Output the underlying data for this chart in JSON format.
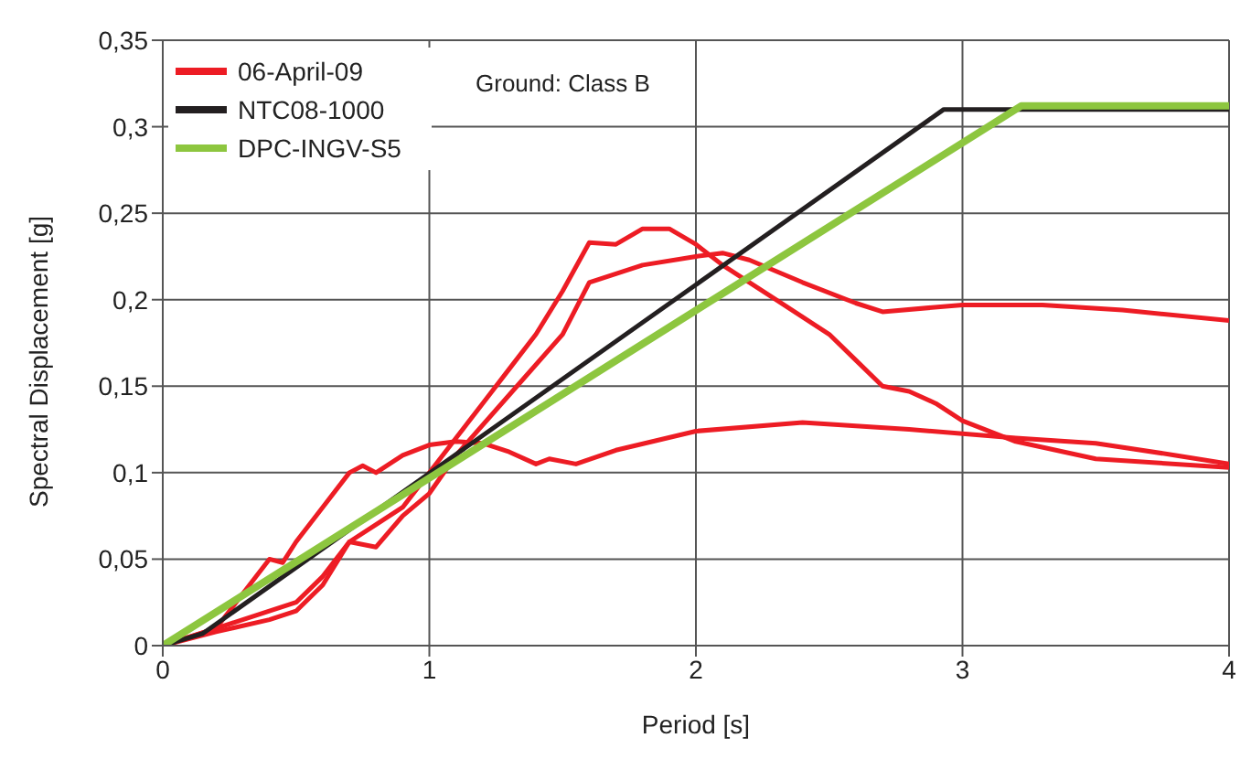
{
  "chart_data": {
    "type": "line",
    "xlabel": "Period [s]",
    "ylabel": "Spectral Displacement [g]",
    "annotations": [
      "Ground: Class B"
    ],
    "xlim": [
      0,
      4
    ],
    "xticks": [
      0,
      1,
      2,
      3,
      4
    ],
    "ylim": [
      0,
      0.35
    ],
    "yticks": [
      {
        "value": 0,
        "label": "0"
      },
      {
        "value": 0.05,
        "label": "0,05"
      },
      {
        "value": 0.1,
        "label": "0,1"
      },
      {
        "value": 0.15,
        "label": "0,15"
      },
      {
        "value": 0.2,
        "label": "0,2"
      },
      {
        "value": 0.25,
        "label": "0,25"
      },
      {
        "value": 0.3,
        "label": "0,3"
      },
      {
        "value": 0.35,
        "label": "0,35"
      }
    ],
    "grid": true,
    "legend": "top left",
    "marker": "none",
    "line_style": "solid",
    "series": [
      {
        "name": "06-April-09",
        "color": "#ed1c24",
        "x": [
          0,
          0.2,
          0.4,
          0.5,
          0.6,
          0.7,
          0.8,
          0.9,
          1.0,
          1.1,
          1.2,
          1.3,
          1.4,
          1.5,
          1.6,
          1.7,
          1.8,
          1.9,
          2.0,
          2.1,
          2.3,
          2.5,
          2.6,
          2.7,
          2.8,
          2.9,
          3.0,
          3.2,
          3.5,
          4
        ],
        "values": [
          0,
          0.01,
          0.02,
          0.025,
          0.04,
          0.06,
          0.07,
          0.08,
          0.1,
          0.12,
          0.14,
          0.16,
          0.18,
          0.205,
          0.233,
          0.232,
          0.241,
          0.241,
          0.232,
          0.22,
          0.2,
          0.18,
          0.165,
          0.15,
          0.147,
          0.14,
          0.13,
          0.118,
          0.108,
          0.103
        ]
      },
      {
        "color": "#ed1c24",
        "x": [
          0,
          0.2,
          0.4,
          0.5,
          0.6,
          0.7,
          0.8,
          0.9,
          1.0,
          1.1,
          1.3,
          1.5,
          1.6,
          1.7,
          1.8,
          2.0,
          2.1,
          2.2,
          2.4,
          2.6,
          2.7,
          3.0,
          3.3,
          3.6,
          4
        ],
        "values": [
          0,
          0.008,
          0.015,
          0.02,
          0.035,
          0.06,
          0.057,
          0.075,
          0.088,
          0.11,
          0.145,
          0.18,
          0.21,
          0.215,
          0.22,
          0.225,
          0.227,
          0.223,
          0.21,
          0.198,
          0.193,
          0.197,
          0.197,
          0.194,
          0.188
        ]
      },
      {
        "color": "#ed1c24",
        "x": [
          0,
          0.2,
          0.3,
          0.4,
          0.45,
          0.5,
          0.6,
          0.7,
          0.75,
          0.8,
          0.9,
          1.0,
          1.1,
          1.2,
          1.3,
          1.4,
          1.45,
          1.55,
          1.7,
          2.0,
          2.4,
          2.8,
          3.2,
          3.5,
          3.8,
          4
        ],
        "values": [
          0,
          0.01,
          0.03,
          0.05,
          0.048,
          0.06,
          0.08,
          0.1,
          0.104,
          0.1,
          0.11,
          0.116,
          0.118,
          0.117,
          0.112,
          0.105,
          0.108,
          0.105,
          0.113,
          0.124,
          0.129,
          0.125,
          0.12,
          0.117,
          0.11,
          0.105
        ]
      },
      {
        "name": "NTC08-1000",
        "color": "#231f20",
        "x": [
          0,
          0.15,
          2.93,
          4
        ],
        "values": [
          0,
          0.007,
          0.31,
          0.31
        ]
      },
      {
        "name": "DPC-INGV-S5",
        "color": "#8dc63f",
        "x": [
          0,
          3.22,
          4
        ],
        "values": [
          0,
          0.312,
          0.312
        ]
      }
    ]
  }
}
